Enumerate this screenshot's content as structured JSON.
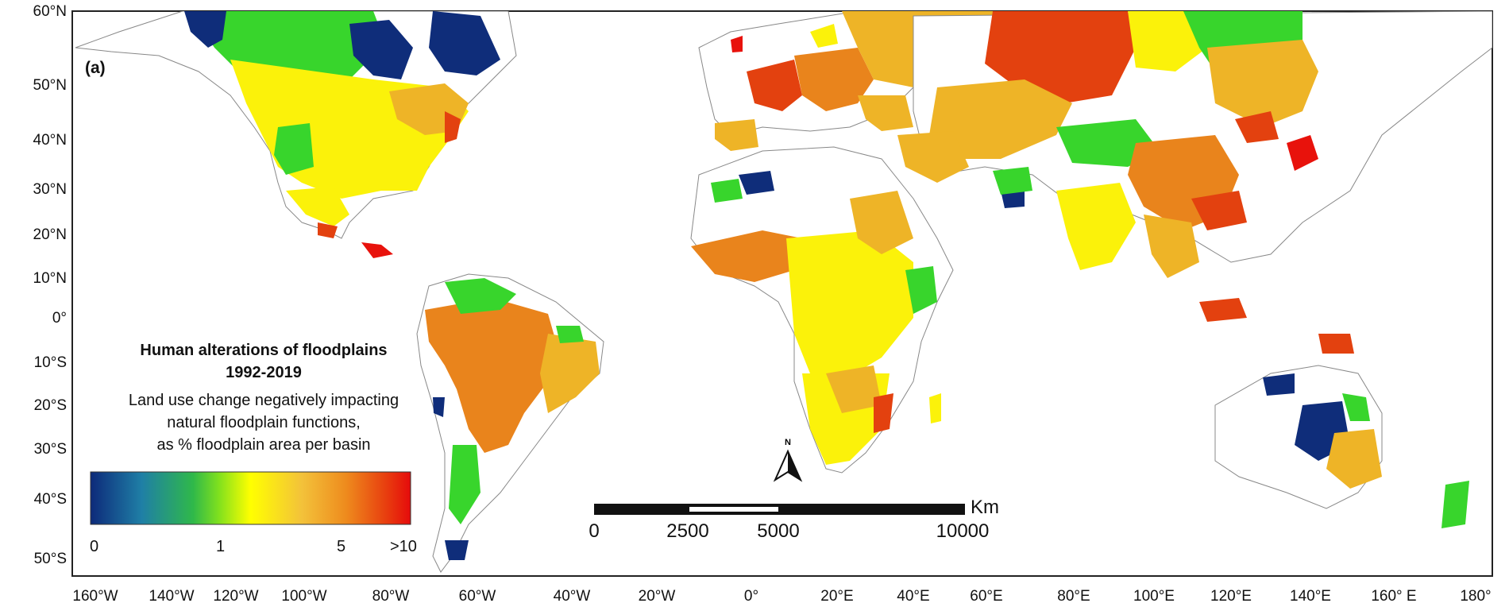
{
  "panel_label": "(a)",
  "latitude_labels": [
    "60°N",
    "50°N",
    "40°N",
    "30°N",
    "20°N",
    "10°N",
    "0°",
    "10°S",
    "20°S",
    "30°S",
    "40°S",
    "50°S"
  ],
  "longitude_labels": [
    "160°W",
    "140°W",
    "120°W",
    "100°W",
    "80°W",
    "60°W",
    "40°W",
    "20°W",
    "0°",
    "20°E",
    "40°E",
    "60°E",
    "80°E",
    "100°E",
    "120°E",
    "140°E",
    "160° E",
    "180°"
  ],
  "legend": {
    "title_line1": "Human alterations of floodplains",
    "title_line2": "1992-2019",
    "subtitle_line1": "Land use change negatively impacting",
    "subtitle_line2": "natural floodplain functions,",
    "subtitle_line3": "as % floodplain area per basin",
    "ticks": [
      "0",
      "1",
      "5",
      ">10"
    ],
    "gradient_colors": [
      "#0d2a7a",
      "#1f7fa6",
      "#2fb84a",
      "#7fe01e",
      "#ffff00",
      "#f3c23a",
      "#ee8a1d",
      "#e8400f",
      "#e60b0b"
    ]
  },
  "north_arrow": {
    "label": "N"
  },
  "scale_bar": {
    "unit": "Km",
    "ticks": [
      "0",
      "2500",
      "5000",
      "10000"
    ]
  },
  "class_colors": {
    "dark_blue": "#0f2d7a",
    "green": "#38d52c",
    "yellow": "#fbf20a",
    "light_orange": "#eeb427",
    "orange": "#e9841c",
    "red": "#e3410f",
    "bright_red": "#e8120c"
  }
}
